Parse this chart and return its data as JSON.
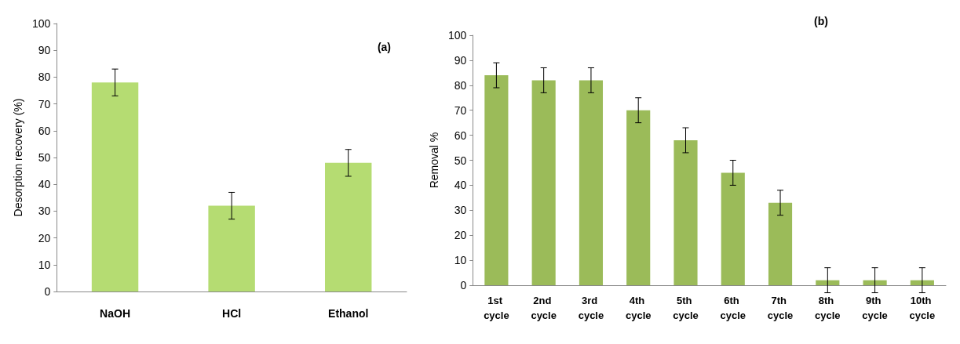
{
  "chart_data": [
    {
      "type": "bar",
      "ylabel": "Desorption recovery (%)",
      "annotations": [
        "(a)"
      ],
      "categories": [
        "NaOH",
        "HCl",
        "Ethanol"
      ],
      "series": [
        {
          "color": "#b5dc72",
          "values": [
            78,
            32,
            48
          ],
          "errors": [
            5,
            5,
            5
          ]
        }
      ],
      "ylim": [
        0,
        100
      ],
      "yticks": [
        0,
        10,
        20,
        30,
        40,
        50,
        60,
        70,
        80,
        90,
        100
      ]
    },
    {
      "type": "bar",
      "ylabel": "Removal %",
      "annotations": [
        "(b)"
      ],
      "categories": [
        "1st cycle",
        "2nd cycle",
        "3rd cycle",
        "4th cycle",
        "5th cycle",
        "6th cycle",
        "7th cycle",
        "8th cycle",
        "9th cycle",
        "10th cycle"
      ],
      "series": [
        {
          "color": "#9bbb59",
          "values": [
            84,
            82,
            82,
            70,
            58,
            45,
            33,
            2,
            2,
            2
          ],
          "errors": [
            5,
            5,
            5,
            5,
            5,
            5,
            5,
            5,
            5,
            5
          ]
        }
      ],
      "ylim": [
        0,
        100
      ],
      "yticks": [
        0,
        10,
        20,
        30,
        40,
        50,
        60,
        70,
        80,
        90,
        100
      ]
    }
  ]
}
